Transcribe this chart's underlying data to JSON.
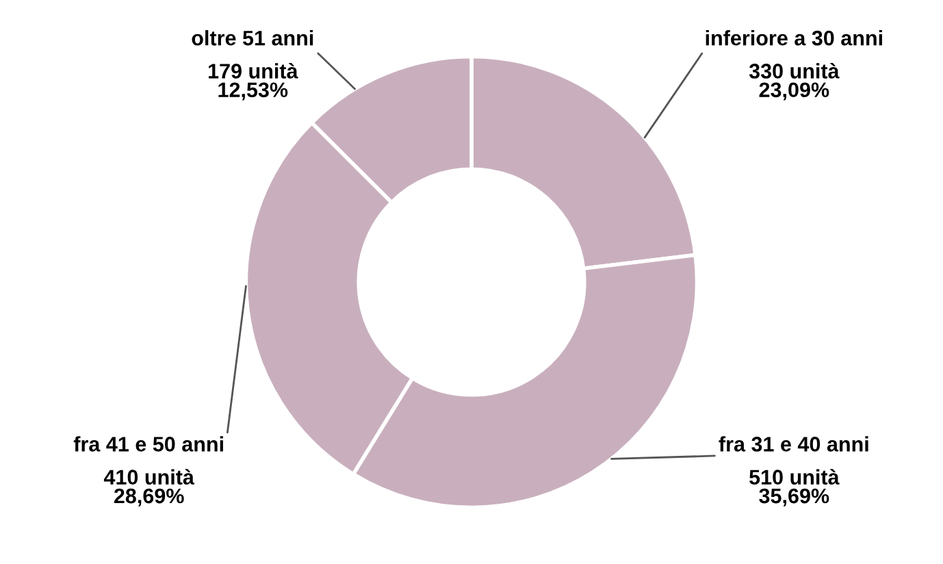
{
  "chart_data": {
    "type": "donut",
    "categories": [
      "inferiore a 30 anni",
      "fra 31 e 40 anni",
      "fra 41 e 50 anni",
      "oltre 51 anni"
    ],
    "values": [
      330,
      510,
      410,
      179
    ],
    "value_labels": [
      "330 unità\n23,09%",
      "510 unità\n35,69%",
      "410 unità\n28,69%",
      "179 unità\n12,53%"
    ],
    "colors": [
      "#c9afbd",
      "#c9afbd",
      "#c9afbd",
      "#c9afbd"
    ],
    "legend": false
  }
}
